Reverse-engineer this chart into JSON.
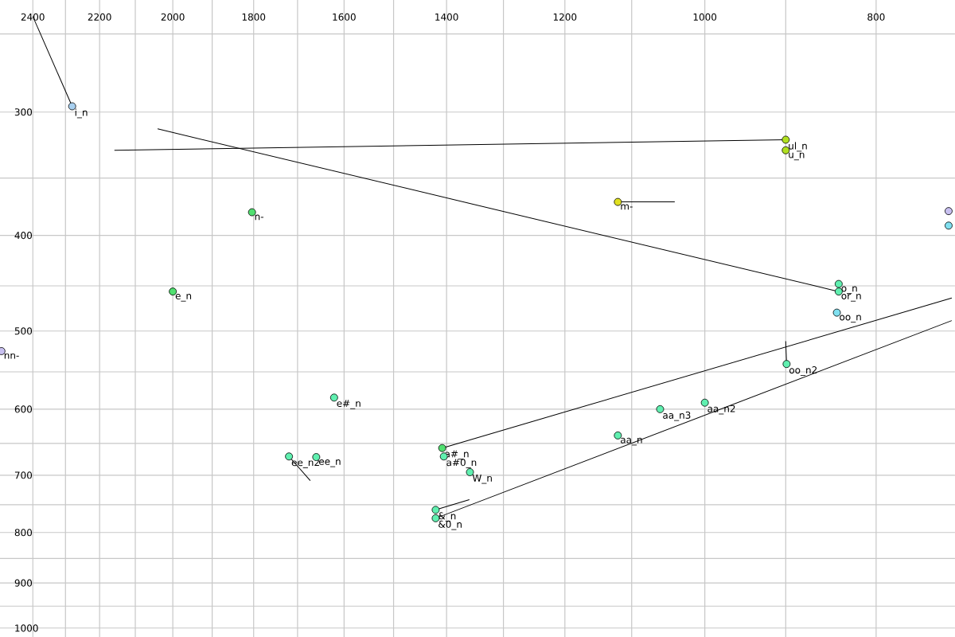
{
  "chart_data": {
    "type": "scatter",
    "log": "xy",
    "grid": true,
    "xlim": [
      2505,
      722
    ],
    "ylim": [
      1021,
      231
    ],
    "xticks": [
      2400,
      {
        "value": 2300,
        "label": null
      },
      2200,
      {
        "value": 2100,
        "label": null
      },
      2000,
      {
        "value": 1900,
        "label": null
      },
      1800,
      {
        "value": 1700,
        "label": null
      },
      1600,
      {
        "value": 1500,
        "label": null
      },
      1400,
      {
        "value": 1300,
        "label": null
      },
      1200,
      {
        "value": 1100,
        "label": null
      },
      1000,
      {
        "value": 900,
        "label": null
      },
      800
    ],
    "yticks": [
      {
        "value": 250,
        "label": null
      },
      300,
      {
        "value": 350,
        "label": null
      },
      400,
      {
        "value": 450,
        "label": null
      },
      500,
      {
        "value": 550,
        "label": null
      },
      600,
      {
        "value": 650,
        "label": null
      },
      700,
      {
        "value": 750,
        "label": null
      },
      800,
      {
        "value": 850,
        "label": null
      },
      900,
      {
        "value": 950,
        "label": null
      },
      1000
    ],
    "series": [
      {
        "type": "line",
        "color": "#000000",
        "marker": "none",
        "x": [
          2400,
          2280
        ],
        "values": [
          240,
          296
        ]
      },
      {
        "type": "line",
        "color": "#000000",
        "marker": "none",
        "x": [
          2158,
          900
        ],
        "values": [
          328,
          320
        ]
      },
      {
        "type": "line",
        "color": "#000000",
        "marker": "none",
        "x": [
          2040,
          840
        ],
        "values": [
          312,
          456
        ]
      },
      {
        "type": "line",
        "color": "#000000",
        "marker": "none",
        "x": [
          1120,
          1040
        ],
        "values": [
          370,
          370
        ]
      },
      {
        "type": "line",
        "color": "#000000",
        "marker": "none",
        "x": [
          1719,
          1672
        ],
        "values": [
          670,
          709
        ]
      },
      {
        "type": "line",
        "color": "#000000",
        "marker": "none",
        "x": [
          1408,
          725
        ],
        "values": [
          657,
          463
        ]
      },
      {
        "type": "line",
        "color": "#000000",
        "marker": "none",
        "x": [
          1420,
          1359
        ],
        "values": [
          759,
          741
        ]
      },
      {
        "type": "line",
        "color": "#000000",
        "marker": "none",
        "x": [
          1420,
          725
        ],
        "values": [
          774,
          488
        ]
      },
      {
        "type": "line",
        "color": "#000000",
        "marker": "none",
        "x": [
          899,
          900
        ],
        "values": [
          540,
          512
        ]
      },
      {
        "type": "scatter",
        "marker": "circle",
        "x": [
          2280,
          1804,
          2000,
          2500,
          1621,
          1719,
          1659,
          1408,
          1405,
          1358,
          1420,
          1420,
          1120,
          1060,
          1000,
          899,
          900,
          900,
          1120,
          840,
          840,
          842,
          728,
          728
        ],
        "values": [
          296,
          379,
          456,
          524,
          584,
          670,
          671,
          657,
          670,
          695,
          759,
          774,
          638,
          600,
          591,
          540,
          320,
          328,
          370,
          448,
          456,
          479,
          378,
          391
        ],
        "colors": [
          "#a8d0f0",
          "#50e070",
          "#50e070",
          "#c8c0f0",
          "#60f0b0",
          "#60f0b0",
          "#60f0b0",
          "#50e070",
          "#60f0b0",
          "#60f0b0",
          "#60f0b0",
          "#60f0b0",
          "#60f0b0",
          "#60f0b0",
          "#60f0b0",
          "#60f0b0",
          "#b0e020",
          "#b0e020",
          "#e0e020",
          "#60f0b0",
          "#60f0b0",
          "#80e0f0",
          "#c8c0f0",
          "#80e0f0"
        ]
      }
    ],
    "annotations": [
      {
        "text": "i_n",
        "x": 2280,
        "y": 296
      },
      {
        "text": "n-",
        "x": 1804,
        "y": 379
      },
      {
        "text": "e_n",
        "x": 2000,
        "y": 456
      },
      {
        "text": "nn-",
        "x": 2500,
        "y": 524
      },
      {
        "text": "e#_n",
        "x": 1621,
        "y": 584
      },
      {
        "text": "ee_n2",
        "x": 1719,
        "y": 670
      },
      {
        "text": "ee_n",
        "x": 1659,
        "y": 671
      },
      {
        "text": "a#_n",
        "x": 1408,
        "y": 657
      },
      {
        "text": "a#0_n",
        "x": 1405,
        "y": 670
      },
      {
        "text": "W_n",
        "x": 1358,
        "y": 695
      },
      {
        "text": "&_n",
        "x": 1420,
        "y": 759
      },
      {
        "text": "&0_n",
        "x": 1420,
        "y": 774
      },
      {
        "text": "aa_n",
        "x": 1120,
        "y": 638
      },
      {
        "text": "aa_n3",
        "x": 1060,
        "y": 600
      },
      {
        "text": "aa_n2",
        "x": 1000,
        "y": 591
      },
      {
        "text": "oo_n2",
        "x": 899,
        "y": 540
      },
      {
        "text": "ul_n",
        "x": 900,
        "y": 320
      },
      {
        "text": "u_n",
        "x": 900,
        "y": 328
      },
      {
        "text": "m-",
        "x": 1120,
        "y": 370
      },
      {
        "text": "o_n",
        "x": 840,
        "y": 448
      },
      {
        "text": "or_n",
        "x": 840,
        "y": 456
      },
      {
        "text": "oo_n",
        "x": 842,
        "y": 479
      }
    ]
  }
}
